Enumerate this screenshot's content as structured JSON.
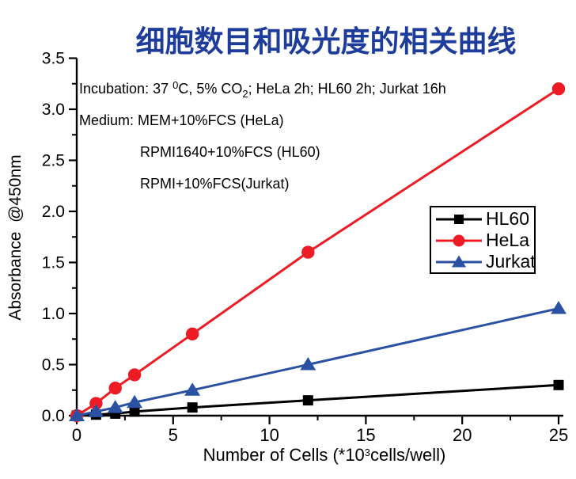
{
  "chart_data": {
    "type": "line",
    "title": "细胞数目和吸光度的相关曲线",
    "title_color": "#1e3c99",
    "ylabel": "Absorbance  @450nm",
    "xlabel_parts": [
      {
        "t": "Number of Cells (*10"
      },
      {
        "t": "3",
        "sup": true
      },
      {
        "t": "cells/well)"
      }
    ],
    "x": [
      0,
      1,
      2,
      3,
      6,
      12,
      25
    ],
    "xlim": [
      0,
      25
    ],
    "ylim": [
      0,
      3.5
    ],
    "x_major_ticks": [
      "0",
      "5",
      "10",
      "15",
      "20",
      "25"
    ],
    "x_minor_step": 2.5,
    "y_major_ticks": [
      "0.0",
      "0.5",
      "1.0",
      "1.5",
      "2.0",
      "2.5",
      "3.0",
      "3.5"
    ],
    "y_minor_step": 0.25,
    "grid": false,
    "legend_position": "center-right",
    "series": [
      {
        "name": "HL60",
        "color": "#000000",
        "marker": "square",
        "values": [
          0.0,
          0.01,
          0.02,
          0.04,
          0.08,
          0.15,
          0.3
        ]
      },
      {
        "name": "HeLa",
        "color": "#ed1c24",
        "marker": "circle",
        "values": [
          0.0,
          0.12,
          0.27,
          0.4,
          0.8,
          1.6,
          3.2
        ]
      },
      {
        "name": "Jurkat",
        "color": "#2b52a2",
        "marker": "triangle",
        "values": [
          0.0,
          0.04,
          0.08,
          0.13,
          0.25,
          0.5,
          1.05
        ]
      }
    ]
  },
  "annotation": {
    "lines": [
      {
        "indent": false,
        "parts": [
          {
            "t": "Incubation: 37 "
          },
          {
            "t": "0",
            "sup": true
          },
          {
            "t": "C, 5% CO"
          },
          {
            "t": "2",
            "sub": true
          },
          {
            "t": "; HeLa 2h; HL60 2h; Jurkat 16h"
          }
        ]
      },
      {
        "indent": false,
        "parts": [
          {
            "t": "Medium: MEM+10%FCS (HeLa)"
          }
        ]
      },
      {
        "indent": true,
        "parts": [
          {
            "t": "RPMI1640+10%FCS (HL60)"
          }
        ]
      },
      {
        "indent": true,
        "parts": [
          {
            "t": "RPMI+10%FCS(Jurkat)"
          }
        ]
      }
    ]
  }
}
